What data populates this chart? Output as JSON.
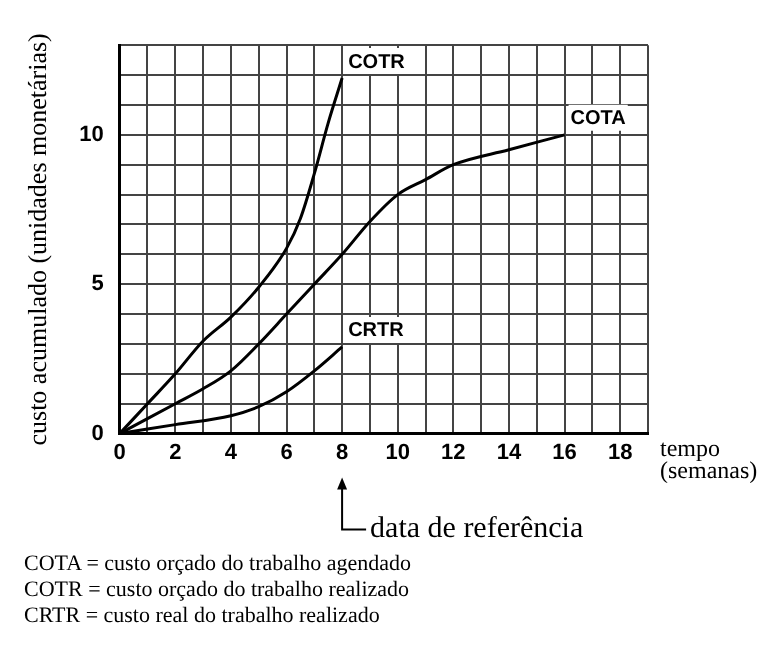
{
  "chart_data": {
    "type": "line",
    "xlabel": "tempo (semanas)",
    "ylabel": "custo acumulado (unidades monetárias)",
    "xlim": [
      0,
      19
    ],
    "ylim": [
      0,
      13
    ],
    "xticks": [
      0,
      {
        "value": 1,
        "label": null
      },
      2,
      {
        "value": 3,
        "label": null
      },
      4,
      {
        "value": 5,
        "label": null
      },
      6,
      {
        "value": 7,
        "label": null
      },
      8,
      {
        "value": 9,
        "label": null
      },
      10,
      {
        "value": 11,
        "label": null
      },
      12,
      {
        "value": 13,
        "label": null
      },
      14,
      {
        "value": 15,
        "label": null
      },
      16,
      {
        "value": 17,
        "label": null
      },
      18,
      {
        "value": 19,
        "label": null
      }
    ],
    "yticks": [
      0,
      {
        "value": 1,
        "label": null
      },
      {
        "value": 2,
        "label": null
      },
      {
        "value": 3,
        "label": null
      },
      {
        "value": 4,
        "label": null
      },
      5,
      {
        "value": 6,
        "label": null
      },
      {
        "value": 7,
        "label": null
      },
      {
        "value": 8,
        "label": null
      },
      {
        "value": 9,
        "label": null
      },
      10,
      {
        "value": 11,
        "label": null
      },
      {
        "value": 12,
        "label": null
      },
      {
        "value": 13,
        "label": null
      }
    ],
    "grid": true,
    "legend": false,
    "marker": "none",
    "line_style": "solid",
    "series": [
      {
        "name": "COTR",
        "color": "#000000",
        "x": [
          0,
          1,
          2,
          3,
          4,
          5,
          6,
          6.5,
          7,
          7.5,
          8
        ],
        "values": [
          0,
          1,
          2,
          3.1,
          3.9,
          4.9,
          6.2,
          7.2,
          8.7,
          10.4,
          11.9
        ]
      },
      {
        "name": "COTA",
        "color": "#000000",
        "x": [
          0,
          1,
          2,
          3,
          4,
          5,
          6,
          7,
          8,
          9,
          10,
          11,
          12,
          14,
          16
        ],
        "values": [
          0,
          0.5,
          1,
          1.5,
          2.1,
          3,
          4,
          5,
          6,
          7.1,
          8,
          8.5,
          9,
          9.5,
          10
        ]
      },
      {
        "name": "CRTR",
        "color": "#000000",
        "x": [
          0,
          2,
          4,
          5,
          6,
          7,
          8
        ],
        "values": [
          0,
          0.3,
          0.6,
          0.9,
          1.4,
          2.1,
          2.9
        ]
      }
    ],
    "annotations": [
      "data de referência",
      "COTA = custo orçado do trabalho agendado",
      "COTR = custo orçado do trabalho realizado",
      "CRTR = custo real do trabalho realizado"
    ]
  }
}
